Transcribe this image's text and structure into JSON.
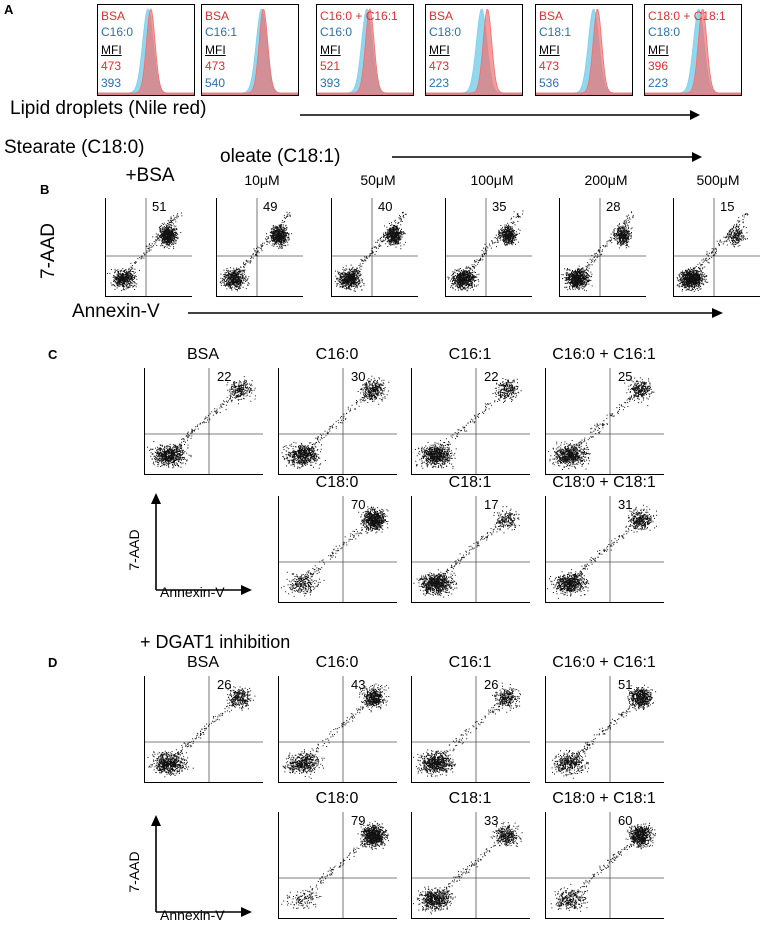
{
  "panel_labels": {
    "a": "A",
    "b": "B",
    "c": "C",
    "d": "D"
  },
  "panel_a": {
    "histograms": [
      {
        "red": "BSA",
        "blue": "C16:0",
        "mfi": "MFI",
        "red_val": "473",
        "blue_val": "393"
      },
      {
        "red": "BSA",
        "blue": "C16:1",
        "mfi": "MFI",
        "red_val": "473",
        "blue_val": "540"
      },
      {
        "red": "C16:0 + C16:1",
        "blue": "C16:0",
        "mfi": "MFI",
        "red_val": "521",
        "blue_val": "393"
      },
      {
        "red": "BSA",
        "blue": "C18:0",
        "mfi": "MFI",
        "red_val": "473",
        "blue_val": "223"
      },
      {
        "red": "BSA",
        "blue": "C18:1",
        "mfi": "MFI",
        "red_val": "473",
        "blue_val": "536"
      },
      {
        "red": "C18:0 + C18:1",
        "blue": "C18:0",
        "mfi": "MFI",
        "red_val": "396",
        "blue_val": "223"
      }
    ],
    "axis_label": "Lipid droplets (Nile red)"
  },
  "panel_b": {
    "stearate_label": "Stearate (C18:0)",
    "oleate_label": "oleate (C18:1)",
    "columns": [
      "+BSA",
      "10μM",
      "50μM",
      "100μM",
      "200μM",
      "500μM"
    ],
    "values": [
      "51",
      "49",
      "40",
      "35",
      "28",
      "15"
    ],
    "y_label": "7-AAD",
    "x_label": "Annexin-V"
  },
  "panel_c": {
    "row1_titles": [
      "BSA",
      "C16:0",
      "C16:1",
      "C16:0 + C16:1"
    ],
    "row1_values": [
      "22",
      "30",
      "22",
      "25"
    ],
    "row2_titles": [
      "C18:0",
      "C18:1",
      "C18:0 + C18:1"
    ],
    "row2_values": [
      "70",
      "17",
      "31"
    ],
    "y_label": "7-AAD",
    "x_label": "Annexin-V"
  },
  "panel_d": {
    "heading": "+ DGAT1 inhibition",
    "row1_titles": [
      "BSA",
      "C16:0",
      "C16:1",
      "C16:0 + C16:1"
    ],
    "row1_values": [
      "26",
      "43",
      "26",
      "51"
    ],
    "row2_titles": [
      "C18:0",
      "C18:1",
      "C18:0 + C18:1"
    ],
    "row2_values": [
      "79",
      "33",
      "60"
    ],
    "y_label": "7-AAD",
    "x_label": "Annexin-V"
  },
  "colors": {
    "red": "#e03030",
    "blue": "#2a6fb0",
    "blue_fill": "#7fd0ea",
    "red_fill": "#f07070"
  }
}
